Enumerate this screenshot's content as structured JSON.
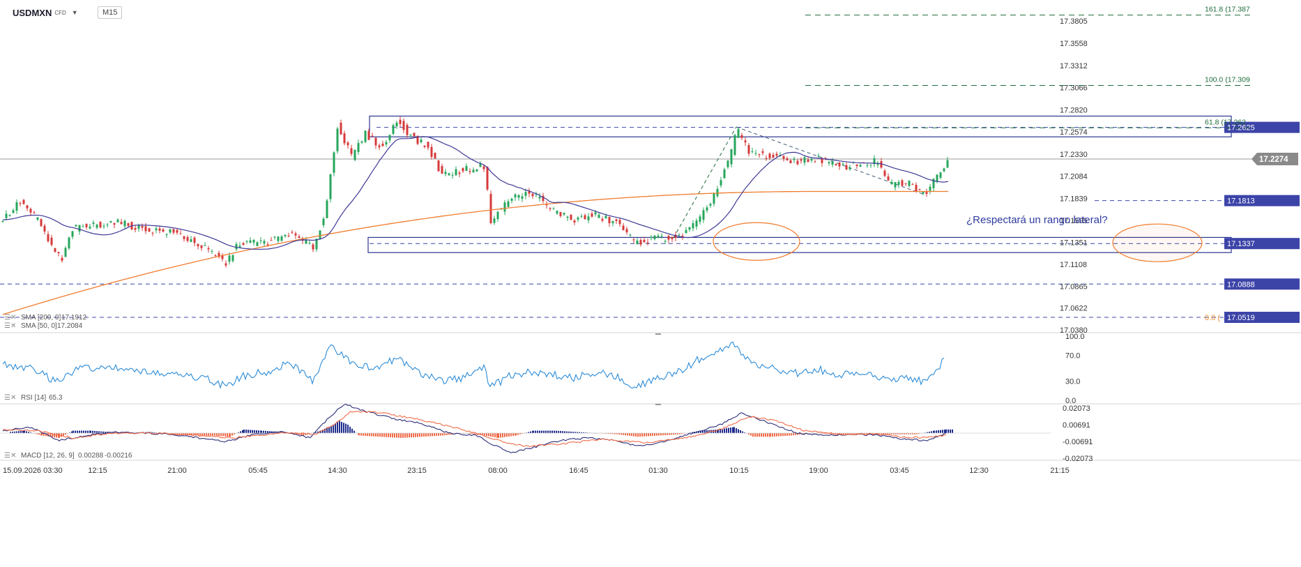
{
  "header": {
    "symbol": "USDMXN",
    "instrument_type": "CFD",
    "timeframe": "M15"
  },
  "colors": {
    "price": "#222222",
    "sma200": "#f07b2c",
    "sma50": "#3d3896",
    "rsi": "#2a8bd8",
    "macd_line": "#2b2e7a",
    "macd_signal": "#f06a47",
    "hist_pos": "#1d2a8c",
    "hist_neg": "#f06a47",
    "fib": "#1e6b3a",
    "level_label_bg": "#3c44a8",
    "annotation": "#2e3aa0",
    "ellipse": "#f07b2c"
  },
  "chart_data": [
    {
      "type": "candlestick",
      "title": "USDMXN",
      "ylim": [
        17.038,
        17.3805
      ],
      "y_ticks": [
        "17.3805",
        "17.3558",
        "17.3312",
        "17.3066",
        "17.2820",
        "17.2574",
        "17.2330",
        "17.2084",
        "17.1839",
        "17.1595",
        "17.1351",
        "17.1108",
        "17.0865",
        "17.0622",
        "17.0380"
      ],
      "current_price": "17.2274",
      "indicators": [
        {
          "name": "SMA [200, 0]",
          "value": "17.1912"
        },
        {
          "name": "SMA [50, 0]",
          "value": "17.2084"
        }
      ],
      "key_points": [
        {
          "x": 0,
          "y": 17.16
        },
        {
          "x": 25,
          "y": 17.18
        },
        {
          "x": 50,
          "y": 17.16
        },
        {
          "x": 70,
          "y": 17.13
        },
        {
          "x": 85,
          "y": 17.115
        },
        {
          "x": 100,
          "y": 17.15
        },
        {
          "x": 160,
          "y": 17.158
        },
        {
          "x": 200,
          "y": 17.15
        },
        {
          "x": 250,
          "y": 17.145
        },
        {
          "x": 280,
          "y": 17.133
        },
        {
          "x": 320,
          "y": 17.112
        },
        {
          "x": 340,
          "y": 17.135
        },
        {
          "x": 380,
          "y": 17.135
        },
        {
          "x": 410,
          "y": 17.145
        },
        {
          "x": 445,
          "y": 17.13
        },
        {
          "x": 462,
          "y": 17.165
        },
        {
          "x": 480,
          "y": 17.265
        },
        {
          "x": 500,
          "y": 17.23
        },
        {
          "x": 520,
          "y": 17.255
        },
        {
          "x": 545,
          "y": 17.24
        },
        {
          "x": 565,
          "y": 17.27
        },
        {
          "x": 590,
          "y": 17.25
        },
        {
          "x": 610,
          "y": 17.24
        },
        {
          "x": 630,
          "y": 17.21
        },
        {
          "x": 660,
          "y": 17.215
        },
        {
          "x": 690,
          "y": 17.22
        },
        {
          "x": 700,
          "y": 17.16
        },
        {
          "x": 730,
          "y": 17.185
        },
        {
          "x": 760,
          "y": 17.19
        },
        {
          "x": 785,
          "y": 17.172
        },
        {
          "x": 820,
          "y": 17.16
        },
        {
          "x": 850,
          "y": 17.165
        },
        {
          "x": 885,
          "y": 17.155
        },
        {
          "x": 905,
          "y": 17.135
        },
        {
          "x": 940,
          "y": 17.14
        },
        {
          "x": 970,
          "y": 17.14
        },
        {
          "x": 1000,
          "y": 17.16
        },
        {
          "x": 1025,
          "y": 17.195
        },
        {
          "x": 1045,
          "y": 17.235
        },
        {
          "x": 1052,
          "y": 17.262
        },
        {
          "x": 1070,
          "y": 17.235
        },
        {
          "x": 1100,
          "y": 17.23
        },
        {
          "x": 1140,
          "y": 17.225
        },
        {
          "x": 1170,
          "y": 17.228
        },
        {
          "x": 1200,
          "y": 17.218
        },
        {
          "x": 1230,
          "y": 17.222
        },
        {
          "x": 1255,
          "y": 17.225
        },
        {
          "x": 1270,
          "y": 17.2
        },
        {
          "x": 1300,
          "y": 17.2
        },
        {
          "x": 1322,
          "y": 17.188
        },
        {
          "x": 1340,
          "y": 17.208
        },
        {
          "x": 1355,
          "y": 17.227
        }
      ]
    },
    {
      "type": "line",
      "title": "RSI [14]",
      "value": "65.3",
      "ylim": [
        0,
        100
      ],
      "y_ticks": [
        "100.0",
        "70.0",
        "30.0",
        "0.0"
      ],
      "key_points": [
        {
          "x": 0,
          "y": 55
        },
        {
          "x": 40,
          "y": 50
        },
        {
          "x": 75,
          "y": 30
        },
        {
          "x": 110,
          "y": 50
        },
        {
          "x": 150,
          "y": 52
        },
        {
          "x": 200,
          "y": 45
        },
        {
          "x": 250,
          "y": 40
        },
        {
          "x": 290,
          "y": 35
        },
        {
          "x": 320,
          "y": 22
        },
        {
          "x": 345,
          "y": 38
        },
        {
          "x": 380,
          "y": 45
        },
        {
          "x": 410,
          "y": 60
        },
        {
          "x": 445,
          "y": 30
        },
        {
          "x": 470,
          "y": 85
        },
        {
          "x": 500,
          "y": 60
        },
        {
          "x": 530,
          "y": 50
        },
        {
          "x": 565,
          "y": 65
        },
        {
          "x": 600,
          "y": 40
        },
        {
          "x": 630,
          "y": 30
        },
        {
          "x": 660,
          "y": 35
        },
        {
          "x": 690,
          "y": 50
        },
        {
          "x": 700,
          "y": 20
        },
        {
          "x": 730,
          "y": 40
        },
        {
          "x": 760,
          "y": 45
        },
        {
          "x": 785,
          "y": 40
        },
        {
          "x": 820,
          "y": 35
        },
        {
          "x": 855,
          "y": 45
        },
        {
          "x": 885,
          "y": 35
        },
        {
          "x": 900,
          "y": 18
        },
        {
          "x": 940,
          "y": 35
        },
        {
          "x": 970,
          "y": 45
        },
        {
          "x": 1000,
          "y": 65
        },
        {
          "x": 1025,
          "y": 75
        },
        {
          "x": 1048,
          "y": 90
        },
        {
          "x": 1070,
          "y": 60
        },
        {
          "x": 1100,
          "y": 50
        },
        {
          "x": 1140,
          "y": 42
        },
        {
          "x": 1170,
          "y": 48
        },
        {
          "x": 1200,
          "y": 40
        },
        {
          "x": 1240,
          "y": 45
        },
        {
          "x": 1270,
          "y": 30
        },
        {
          "x": 1300,
          "y": 35
        },
        {
          "x": 1325,
          "y": 28
        },
        {
          "x": 1352,
          "y": 65
        }
      ]
    },
    {
      "type": "line",
      "title": "MACD [12, 26, 9]",
      "values_text": [
        "0.00288",
        "-0.00216"
      ],
      "ylim": [
        -0.02073,
        0.02073
      ],
      "y_ticks": [
        "0.02073",
        "0.00691",
        "-0.00691",
        "-0.02073"
      ],
      "macd_points": [
        {
          "x": 0,
          "y": 0.002
        },
        {
          "x": 40,
          "y": 0.005
        },
        {
          "x": 80,
          "y": -0.006
        },
        {
          "x": 120,
          "y": -0.002
        },
        {
          "x": 160,
          "y": 0.001
        },
        {
          "x": 200,
          "y": 0.0
        },
        {
          "x": 240,
          "y": -0.001
        },
        {
          "x": 280,
          "y": -0.004
        },
        {
          "x": 320,
          "y": -0.007
        },
        {
          "x": 360,
          "y": -0.001
        },
        {
          "x": 400,
          "y": 0.001
        },
        {
          "x": 440,
          "y": -0.004
        },
        {
          "x": 470,
          "y": 0.014
        },
        {
          "x": 490,
          "y": 0.024
        },
        {
          "x": 520,
          "y": 0.018
        },
        {
          "x": 560,
          "y": 0.012
        },
        {
          "x": 600,
          "y": 0.008
        },
        {
          "x": 640,
          "y": 0.0
        },
        {
          "x": 680,
          "y": -0.002
        },
        {
          "x": 700,
          "y": -0.009
        },
        {
          "x": 730,
          "y": -0.016
        },
        {
          "x": 760,
          "y": -0.012
        },
        {
          "x": 800,
          "y": -0.006
        },
        {
          "x": 840,
          "y": -0.004
        },
        {
          "x": 880,
          "y": -0.006
        },
        {
          "x": 910,
          "y": -0.011
        },
        {
          "x": 950,
          "y": -0.007
        },
        {
          "x": 990,
          "y": 0.0
        },
        {
          "x": 1030,
          "y": 0.007
        },
        {
          "x": 1060,
          "y": 0.017
        },
        {
          "x": 1100,
          "y": 0.008
        },
        {
          "x": 1140,
          "y": 0.0
        },
        {
          "x": 1180,
          "y": -0.002
        },
        {
          "x": 1220,
          "y": -0.001
        },
        {
          "x": 1260,
          "y": -0.002
        },
        {
          "x": 1290,
          "y": -0.005
        },
        {
          "x": 1325,
          "y": -0.006
        },
        {
          "x": 1355,
          "y": 0.0
        }
      ],
      "signal_points": [
        {
          "x": 0,
          "y": 0.003
        },
        {
          "x": 50,
          "y": 0.002
        },
        {
          "x": 100,
          "y": -0.004
        },
        {
          "x": 160,
          "y": 0.0
        },
        {
          "x": 220,
          "y": 0.0
        },
        {
          "x": 280,
          "y": -0.002
        },
        {
          "x": 330,
          "y": -0.004
        },
        {
          "x": 400,
          "y": 0.0
        },
        {
          "x": 450,
          "y": -0.001
        },
        {
          "x": 480,
          "y": 0.009
        },
        {
          "x": 500,
          "y": 0.018
        },
        {
          "x": 540,
          "y": 0.017
        },
        {
          "x": 600,
          "y": 0.011
        },
        {
          "x": 660,
          "y": 0.003
        },
        {
          "x": 710,
          "y": -0.006
        },
        {
          "x": 750,
          "y": -0.011
        },
        {
          "x": 800,
          "y": -0.009
        },
        {
          "x": 860,
          "y": -0.005
        },
        {
          "x": 920,
          "y": -0.008
        },
        {
          "x": 980,
          "y": -0.004
        },
        {
          "x": 1030,
          "y": 0.003
        },
        {
          "x": 1070,
          "y": 0.014
        },
        {
          "x": 1110,
          "y": 0.01
        },
        {
          "x": 1150,
          "y": 0.002
        },
        {
          "x": 1200,
          "y": -0.001
        },
        {
          "x": 1260,
          "y": -0.001
        },
        {
          "x": 1300,
          "y": -0.004
        },
        {
          "x": 1355,
          "y": -0.002
        }
      ],
      "histogram": [
        {
          "x": 10,
          "y": 0.001
        },
        {
          "x": 30,
          "y": 0.002
        },
        {
          "x": 55,
          "y": -0.002
        },
        {
          "x": 80,
          "y": -0.004
        },
        {
          "x": 100,
          "y": 0.002
        },
        {
          "x": 125,
          "y": 0.002
        },
        {
          "x": 150,
          "y": 0.001
        },
        {
          "x": 180,
          "y": 0.0
        },
        {
          "x": 210,
          "y": 0.001
        },
        {
          "x": 240,
          "y": -0.001
        },
        {
          "x": 270,
          "y": -0.002
        },
        {
          "x": 300,
          "y": -0.002
        },
        {
          "x": 325,
          "y": -0.003
        },
        {
          "x": 345,
          "y": 0.003
        },
        {
          "x": 370,
          "y": 0.002
        },
        {
          "x": 400,
          "y": 0.001
        },
        {
          "x": 430,
          "y": -0.002
        },
        {
          "x": 455,
          "y": 0.002
        },
        {
          "x": 470,
          "y": 0.006
        },
        {
          "x": 482,
          "y": 0.01
        },
        {
          "x": 494,
          "y": 0.007
        },
        {
          "x": 510,
          "y": -0.002
        },
        {
          "x": 540,
          "y": -0.003
        },
        {
          "x": 570,
          "y": -0.004
        },
        {
          "x": 600,
          "y": -0.003
        },
        {
          "x": 630,
          "y": -0.002
        },
        {
          "x": 660,
          "y": 0.0
        },
        {
          "x": 690,
          "y": -0.002
        },
        {
          "x": 710,
          "y": -0.004
        },
        {
          "x": 735,
          "y": -0.002
        },
        {
          "x": 760,
          "y": 0.002
        },
        {
          "x": 790,
          "y": 0.002
        },
        {
          "x": 820,
          "y": 0.001
        },
        {
          "x": 850,
          "y": 0.0
        },
        {
          "x": 880,
          "y": -0.001
        },
        {
          "x": 910,
          "y": -0.003
        },
        {
          "x": 940,
          "y": -0.002
        },
        {
          "x": 970,
          "y": -0.001
        },
        {
          "x": 1000,
          "y": 0.002
        },
        {
          "x": 1025,
          "y": 0.003
        },
        {
          "x": 1048,
          "y": 0.005
        },
        {
          "x": 1075,
          "y": -0.003
        },
        {
          "x": 1100,
          "y": -0.003
        },
        {
          "x": 1130,
          "y": -0.002
        },
        {
          "x": 1160,
          "y": 0.0
        },
        {
          "x": 1190,
          "y": -0.001
        },
        {
          "x": 1220,
          "y": -0.001
        },
        {
          "x": 1250,
          "y": -0.001
        },
        {
          "x": 1280,
          "y": -0.001
        },
        {
          "x": 1310,
          "y": -0.001
        },
        {
          "x": 1335,
          "y": 0.002
        },
        {
          "x": 1352,
          "y": 0.003
        }
      ]
    }
  ],
  "time_axis": {
    "labels": [
      "15.09.2026 03:30",
      "12:15",
      "21:00",
      "05:45",
      "14:30",
      "23:15",
      "08:00",
      "16:45",
      "01:30",
      "10:15",
      "19:00",
      "03:45",
      "12:30",
      "21:15"
    ]
  },
  "levels": [
    {
      "label": "17.2625",
      "price": 17.2625
    },
    {
      "label": "17.1813",
      "price": 17.1813
    },
    {
      "label": "17.1337",
      "price": 17.1337
    },
    {
      "label": "17.0888",
      "price": 17.0888
    },
    {
      "label": "17.0519",
      "price": 17.0519
    }
  ],
  "fibonacci": [
    {
      "label": "161.8 (17.387",
      "price": 17.387
    },
    {
      "label": "100.0 (17.309",
      "price": 17.309
    },
    {
      "label": "61.8 (17.262",
      "price": 17.262
    },
    {
      "label": "0.0 (",
      "price": 17.0519
    }
  ],
  "zones": [
    {
      "top": 17.275,
      "bottom": 17.252
    },
    {
      "top": 17.1405,
      "bottom": 17.1237
    }
  ],
  "annotation": "¿Respectará un rango lateral?"
}
